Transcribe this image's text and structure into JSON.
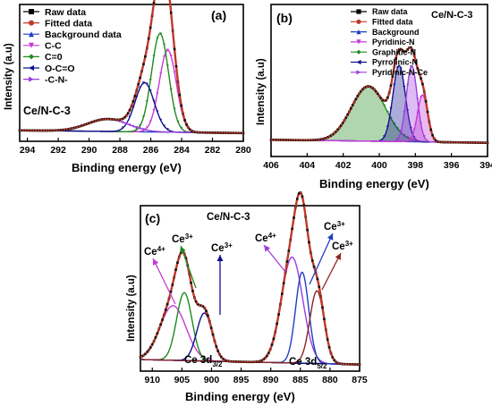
{
  "chart_data": [
    {
      "type": "line",
      "panel_label": "(a)",
      "xlabel": "Binding energy (eV)",
      "ylabel": "Intensity (a.u)",
      "sample_label": "Ce/N-C-3",
      "xlim": [
        294.5,
        280
      ],
      "x_ticks": [
        "294",
        "292",
        "290",
        "288",
        "286",
        "284",
        "282",
        "280"
      ],
      "tick_values": [
        294,
        292,
        290,
        288,
        286,
        284,
        282,
        280
      ],
      "y_ticks_shown": false,
      "baseline": 0.06,
      "legend": [
        {
          "name": "Raw data",
          "color": "#000000",
          "marker": "square"
        },
        {
          "name": "Fitted data",
          "color": "#c0392b",
          "marker": "circle"
        },
        {
          "name": "Background data",
          "color": "#1f3fbf",
          "marker": "triangle"
        },
        {
          "name": "C-C",
          "color": "#c63ad6",
          "marker": "triangle-down"
        },
        {
          "name": "C=0",
          "color": "#1e8a1e",
          "marker": "diamond"
        },
        {
          "name": "O-C=O",
          "color": "#10108f",
          "marker": "triangle-left"
        },
        {
          "name": "-C-N-",
          "color": "#9b3fdc",
          "marker": "triangle-right"
        }
      ],
      "components": [
        {
          "name": "C-C",
          "color": "#c63ad6",
          "center": 284.9,
          "height": 0.6,
          "width": 0.55
        },
        {
          "name": "C=0",
          "color": "#1e8a1e",
          "center": 285.4,
          "height": 0.72,
          "width": 0.55
        },
        {
          "name": "O-C=O",
          "color": "#10108f",
          "center": 286.4,
          "height": 0.36,
          "width": 0.62
        },
        {
          "name": "-C-N-",
          "color": "#9b3fdc",
          "center": 288.8,
          "height": 0.09,
          "width": 1.3
        }
      ]
    },
    {
      "type": "line",
      "panel_label": "(b)",
      "xlabel": "Binding energy (eV)",
      "ylabel": "Intensity (a.u)",
      "sample_label": "Ce/N-C-3",
      "xlim": [
        406,
        394
      ],
      "x_ticks": [
        "406",
        "404",
        "402",
        "400",
        "398",
        "396",
        "394"
      ],
      "tick_values": [
        406,
        404,
        402,
        400,
        398,
        396,
        394
      ],
      "y_ticks_shown": false,
      "baseline": 0.09,
      "legend": [
        {
          "name": "Raw data",
          "color": "#000000",
          "marker": "square"
        },
        {
          "name": "Fitted data",
          "color": "#c0392b",
          "marker": "circle"
        },
        {
          "name": "Background",
          "color": "#1f3fbf",
          "marker": "triangle"
        },
        {
          "name": "Pyridinic-N",
          "color": "#c63ad6",
          "marker": "triangle-down"
        },
        {
          "name": "Graphitic-N",
          "color": "#1e8a1e",
          "marker": "diamond"
        },
        {
          "name": "Pyrrolinic-N",
          "color": "#10108f",
          "marker": "triangle-left"
        },
        {
          "name": "Pyridinic-N-Ce",
          "color": "#9b3fdc",
          "marker": "triangle-right"
        }
      ],
      "components": [
        {
          "name": "Graphitic-N",
          "color": "#1e8a1e",
          "center": 400.6,
          "height": 0.36,
          "width": 0.95
        },
        {
          "name": "Pyrrolinic-N",
          "color": "#10108f",
          "center": 398.9,
          "height": 0.5,
          "width": 0.35
        },
        {
          "name": "Pyridinic-N-Ce",
          "color": "#9b3fdc",
          "center": 398.2,
          "height": 0.5,
          "width": 0.3
        },
        {
          "name": "Pyridinic-N",
          "color": "#c63ad6",
          "center": 397.6,
          "height": 0.31,
          "width": 0.28
        }
      ]
    },
    {
      "type": "line",
      "panel_label": "(c)",
      "xlabel": "Binding energy (eV)",
      "ylabel": "Intensity (a.u)",
      "sample_label": "Ce/N-C-3",
      "xlim": [
        912,
        875
      ],
      "x_ticks": [
        "910",
        "905",
        "900",
        "895",
        "890",
        "885",
        "880",
        "875"
      ],
      "tick_values": [
        910,
        905,
        900,
        895,
        890,
        885,
        880,
        875
      ],
      "y_ticks_shown": false,
      "baseline": 0.04,
      "region_labels": [
        "Ce 3d",
        "Ce 3d"
      ],
      "region_subscripts": [
        "3/2",
        "5/2"
      ],
      "components": [
        {
          "name": "Ce4+",
          "color": "#c63ad6",
          "center": 906.5,
          "height": 0.33,
          "width": 2.2
        },
        {
          "name": "Ce3+",
          "color": "#1e8a1e",
          "center": 904.6,
          "height": 0.41,
          "width": 1.3
        },
        {
          "name": "Ce3+",
          "color": "#10108f",
          "center": 901.2,
          "height": 0.29,
          "width": 1.3
        },
        {
          "name": "Ce4+",
          "color": "#9b3fdc",
          "center": 886.4,
          "height": 0.64,
          "width": 1.8
        },
        {
          "name": "Ce3+",
          "color": "#1f3fbf",
          "center": 884.7,
          "height": 0.55,
          "width": 1.1
        },
        {
          "name": "Ce3+",
          "color": "#8b2323",
          "center": 882.2,
          "height": 0.44,
          "width": 1.2
        }
      ],
      "annotations": [
        {
          "text": "Ce4+",
          "base": "Ce",
          "sup": "4+"
        },
        {
          "text": "Ce3+",
          "base": "Ce",
          "sup": "3+"
        },
        {
          "text": "Ce3+",
          "base": "Ce",
          "sup": "3+"
        },
        {
          "text": "Ce4+",
          "base": "Ce",
          "sup": "4+"
        },
        {
          "text": "Ce3+",
          "base": "Ce",
          "sup": "3+"
        },
        {
          "text": "Ce3+",
          "base": "Ce",
          "sup": "3+"
        }
      ]
    }
  ]
}
